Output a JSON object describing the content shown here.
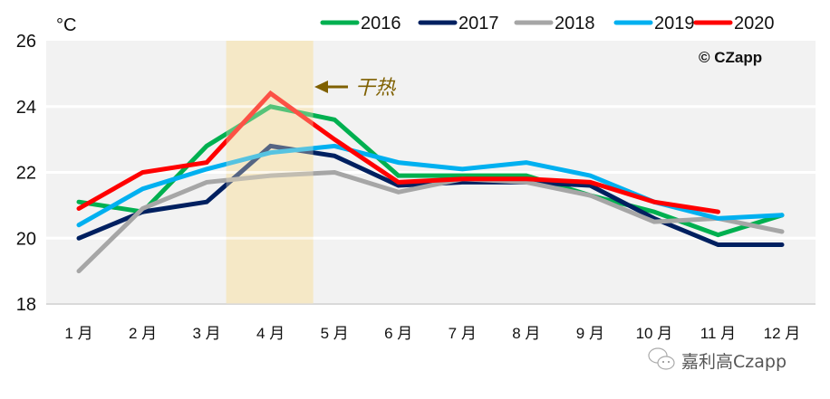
{
  "chart_data": {
    "type": "line",
    "title": "",
    "xlabel": "",
    "ylabel": "°C",
    "ylim": [
      18,
      26
    ],
    "yticks": [
      18,
      20,
      22,
      24,
      26
    ],
    "grid": true,
    "legend_position": "top-right",
    "categories": [
      "1月",
      "2月",
      "3月",
      "4月",
      "5月",
      "6月",
      "7月",
      "8月",
      "9月",
      "10月",
      "11月",
      "12月"
    ],
    "series": [
      {
        "name": "2016",
        "color": "#00b050",
        "values": [
          21.1,
          20.8,
          22.8,
          24.0,
          23.6,
          21.9,
          21.9,
          21.9,
          21.3,
          20.8,
          20.1,
          20.7
        ]
      },
      {
        "name": "2017",
        "color": "#002060",
        "values": [
          20.0,
          20.8,
          21.1,
          22.8,
          22.5,
          21.6,
          21.7,
          21.7,
          21.6,
          20.6,
          19.8,
          19.8
        ]
      },
      {
        "name": "2018",
        "color": "#a6a6a6",
        "values": [
          19.0,
          20.9,
          21.7,
          21.9,
          22.0,
          21.4,
          21.8,
          21.7,
          21.3,
          20.5,
          20.6,
          20.2
        ]
      },
      {
        "name": "2019",
        "color": "#00b0f0",
        "values": [
          20.4,
          21.5,
          22.1,
          22.6,
          22.8,
          22.3,
          22.1,
          22.3,
          21.9,
          21.1,
          20.6,
          20.7
        ]
      },
      {
        "name": "2020",
        "color": "#ff0000",
        "values": [
          20.9,
          22.0,
          22.3,
          24.4,
          23.0,
          21.7,
          21.8,
          21.8,
          21.7,
          21.1,
          20.8,
          null
        ]
      }
    ],
    "highlight": {
      "category": "4月",
      "label": "干热",
      "color": "#f5e9c6"
    },
    "annotations": [
      "干热"
    ],
    "credit": "© CZapp",
    "unit_label": "°C"
  },
  "watermark": "嘉利高Czapp"
}
